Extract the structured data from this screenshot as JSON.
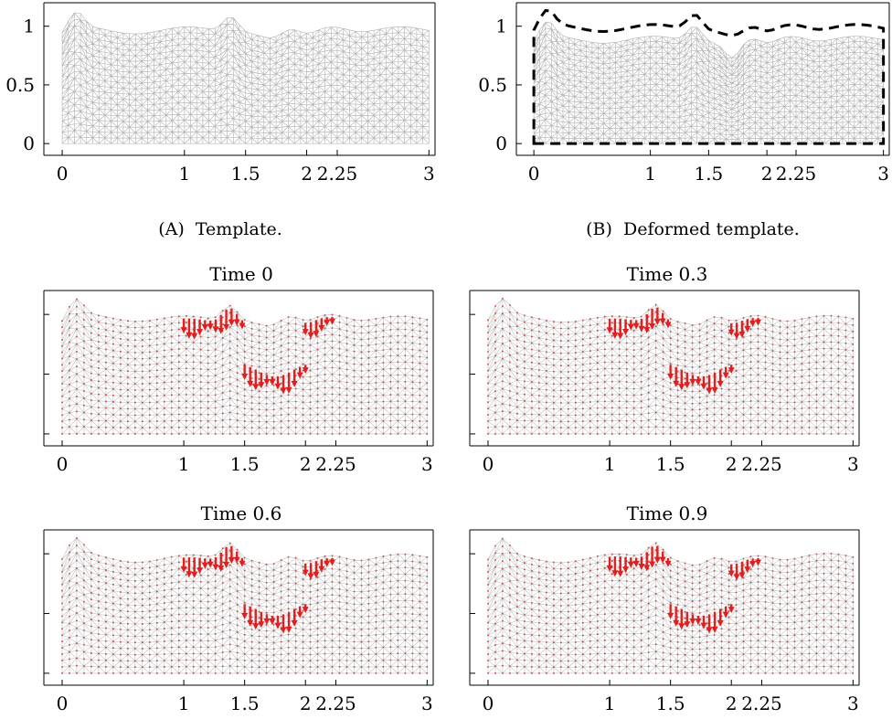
{
  "caption_a": {
    "label": "(A)",
    "text": "Template."
  },
  "caption_b": {
    "label": "(B)",
    "text": "Deformed template."
  },
  "panels": [
    {
      "title": ""
    },
    {
      "title": ""
    },
    {
      "title": "Time 0"
    },
    {
      "title": "Time 0.3"
    },
    {
      "title": "Time 0.6"
    },
    {
      "title": "Time 0.9"
    }
  ],
  "chart_data": [
    {
      "type": "other",
      "description_panel": "A",
      "title": "",
      "xticks": [
        0,
        1,
        1.5,
        2,
        2.25,
        3
      ],
      "xtick_labels": [
        "0",
        "1",
        "1.5",
        "2",
        "2.25",
        "3"
      ],
      "yticks": [
        0,
        0.5,
        1
      ],
      "ytick_labels": [
        "0",
        "0.5",
        "1"
      ],
      "xlim": [
        -0.15,
        3.05
      ],
      "ylim": [
        -0.1,
        1.2
      ],
      "mesh_color": "#b8b8b8"
    },
    {
      "type": "other",
      "description_panel": "B",
      "title": "",
      "xticks": [
        0,
        1,
        1.5,
        2,
        2.25,
        3
      ],
      "xtick_labels": [
        "0",
        "1",
        "1.5",
        "2",
        "2.25",
        "3"
      ],
      "yticks": [
        0,
        0.5,
        1
      ],
      "ytick_labels": [
        "0",
        "0.5",
        "1"
      ],
      "xlim": [
        -0.15,
        3.05
      ],
      "ylim": [
        -0.1,
        1.2
      ],
      "mesh_color": "#b8b8b8",
      "outline_style": "dashed",
      "outline_color": "#000000"
    },
    {
      "type": "other",
      "title": "Time 0",
      "xtick_labels": [
        "0",
        "1",
        "1.5",
        "2",
        "2.25",
        "3"
      ],
      "arrow_color": "#e02020",
      "mesh_color": "#c8c8c8"
    },
    {
      "type": "other",
      "title": "Time 0.3",
      "xtick_labels": [
        "0",
        "1",
        "1.5",
        "2",
        "2.25",
        "3"
      ],
      "arrow_color": "#e02020",
      "mesh_color": "#c8c8c8"
    },
    {
      "type": "other",
      "title": "Time 0.6",
      "xtick_labels": [
        "0",
        "1",
        "1.5",
        "2",
        "2.25",
        "3"
      ],
      "arrow_color": "#e02020",
      "mesh_color": "#c8c8c8"
    },
    {
      "type": "other",
      "title": "Time 0.9",
      "xtick_labels": [
        "0",
        "1",
        "1.5",
        "2",
        "2.25",
        "3"
      ],
      "arrow_color": "#e02020",
      "mesh_color": "#c8c8c8"
    }
  ]
}
